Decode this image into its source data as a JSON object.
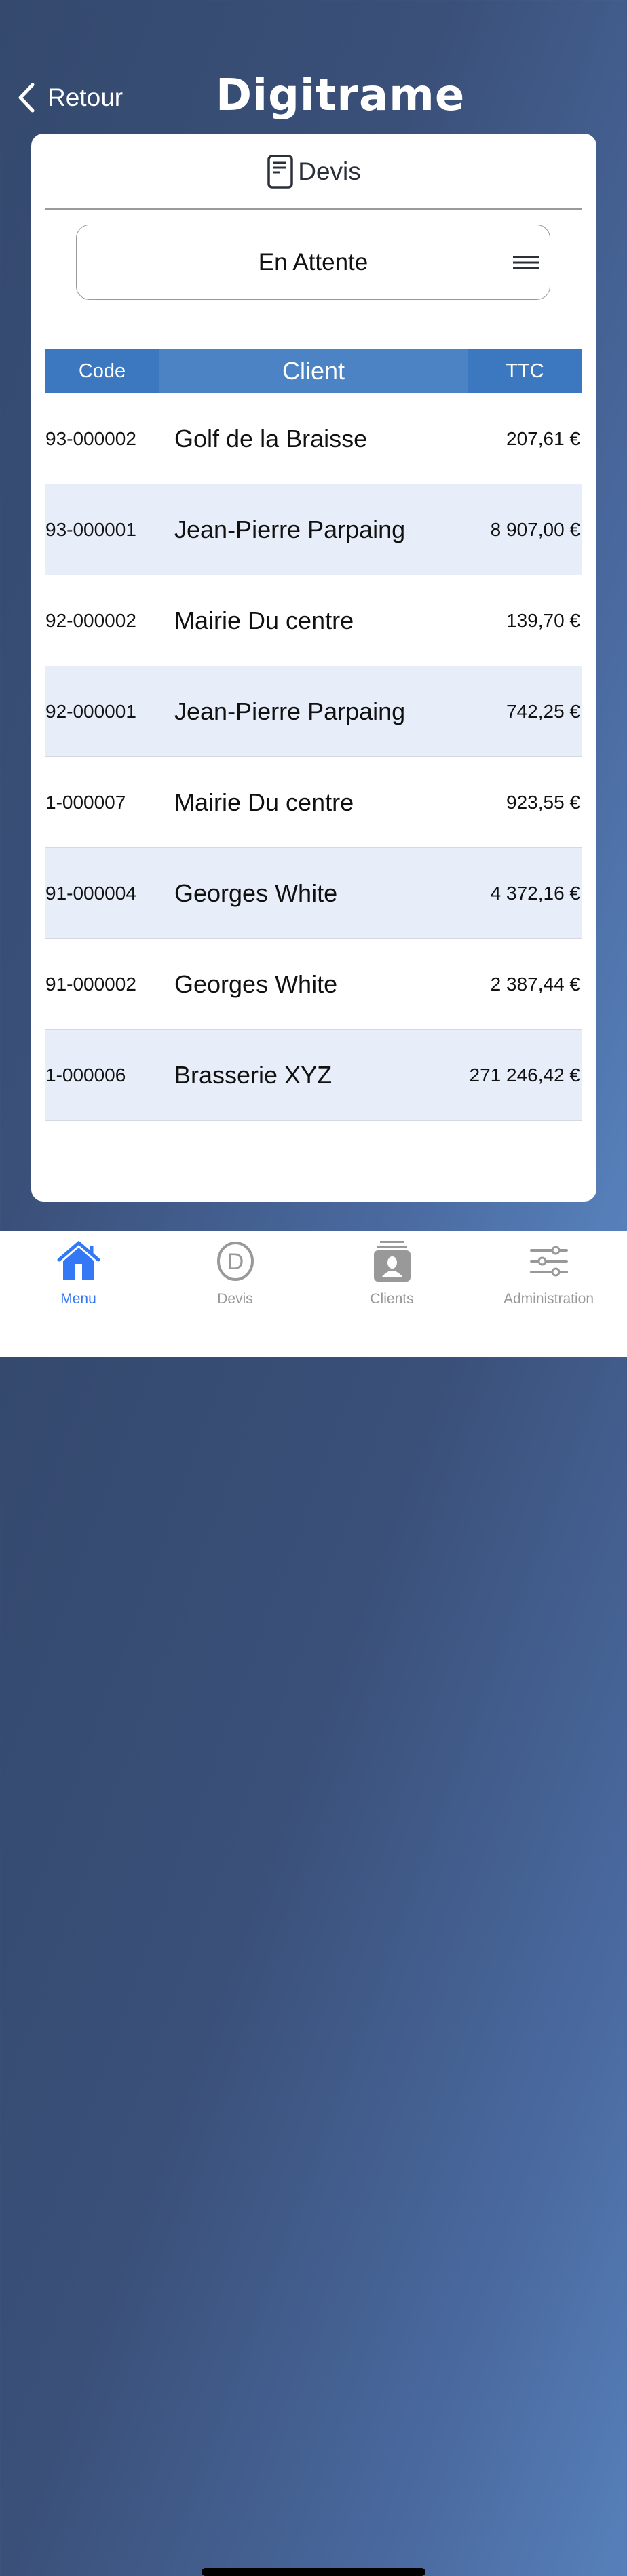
{
  "header": {
    "back_label": "Retour",
    "logo": "Digitrame"
  },
  "card": {
    "title": "Devis",
    "title_icon": "document-icon"
  },
  "filter": {
    "selected": "En Attente",
    "icon": "menu-icon"
  },
  "table": {
    "columns": [
      "Code",
      "Client",
      "TTC"
    ],
    "rows": [
      {
        "code": "93-000002",
        "client": "Golf de la Braisse",
        "ttc": "207,61 €"
      },
      {
        "code": "93-000001",
        "client": "Jean-Pierre Parpaing",
        "ttc": "8 907,00 €"
      },
      {
        "code": "92-000002",
        "client": "Mairie Du centre",
        "ttc": "139,70 €"
      },
      {
        "code": "92-000001",
        "client": "Jean-Pierre Parpaing",
        "ttc": "742,25 €"
      },
      {
        "code": "1-000007",
        "client": "Mairie Du centre",
        "ttc": "923,55 €"
      },
      {
        "code": "91-000004",
        "client": "Georges White",
        "ttc": "4 372,16 €"
      },
      {
        "code": "91-000002",
        "client": "Georges White",
        "ttc": "2 387,44 €"
      },
      {
        "code": "1-000006",
        "client": "Brasserie XYZ",
        "ttc": "271 246,42 €"
      }
    ]
  },
  "tabbar": {
    "items": [
      {
        "label": "Menu",
        "icon": "home-icon",
        "active": true
      },
      {
        "label": "Devis",
        "icon": "devis-circle-icon"
      },
      {
        "label": "Clients",
        "icon": "contact-card-icon"
      },
      {
        "label": "Administration",
        "icon": "sliders-icon"
      }
    ]
  },
  "colors": {
    "accent": "#3478f6",
    "header_cell": "#3b78c0",
    "alt_row": "#e8eef9",
    "inactive": "#999999"
  }
}
